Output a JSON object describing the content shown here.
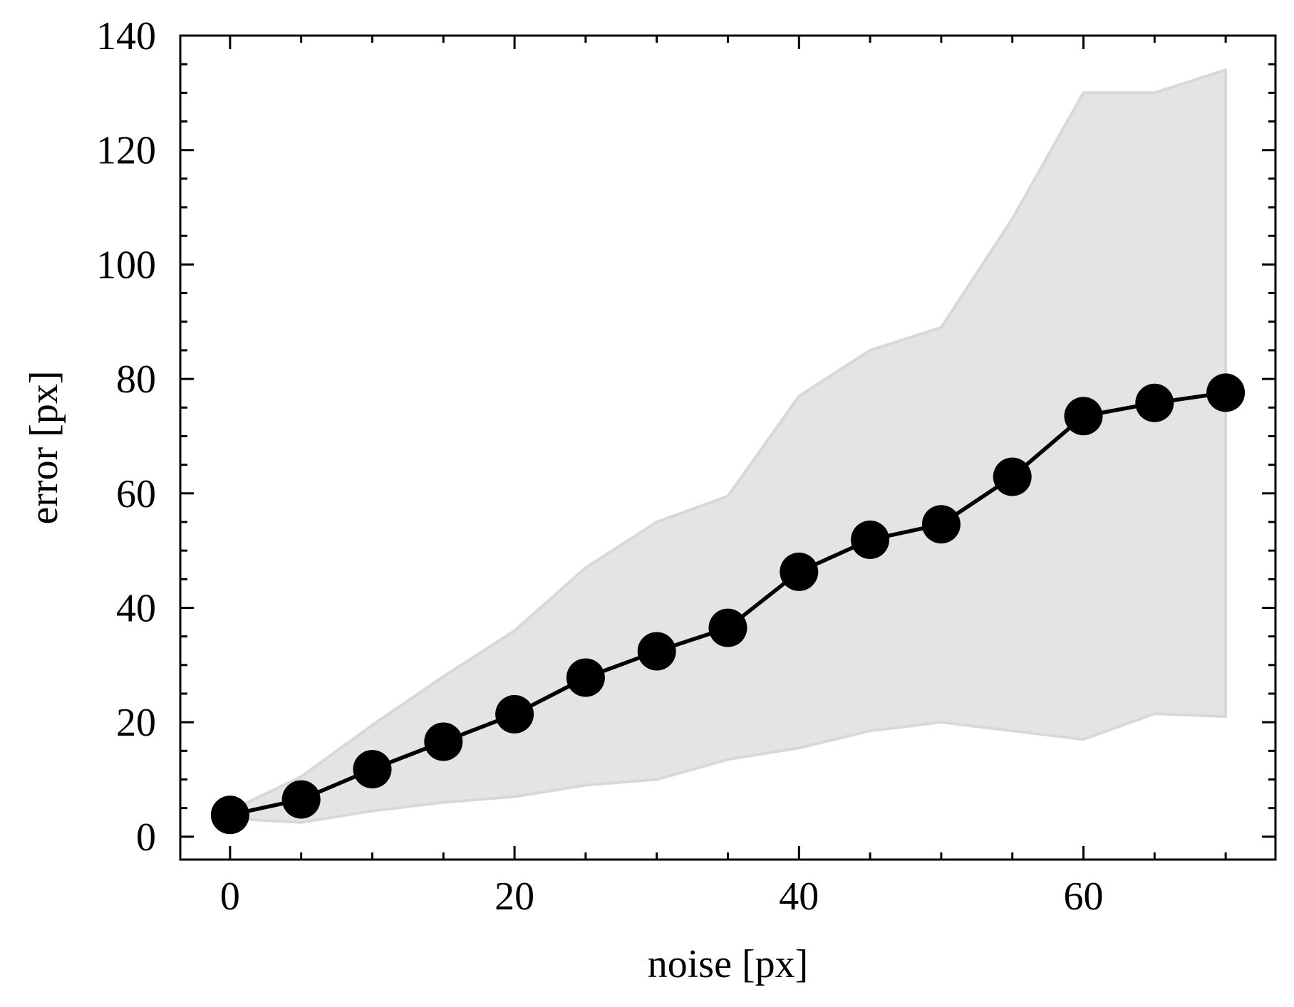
{
  "chart_data": {
    "type": "line",
    "xlabel": "noise [px]",
    "ylabel": "error [px]",
    "xlim": [
      -3.5,
      73.5
    ],
    "ylim": [
      -4,
      140
    ],
    "x_ticks": [
      0,
      20,
      40,
      60
    ],
    "y_ticks": [
      0,
      20,
      40,
      60,
      80,
      100,
      120,
      140
    ],
    "x_minor_step": 5,
    "y_minor_step": 5,
    "grid": false,
    "tick_direction": "in",
    "series": [
      {
        "x": [
          0,
          5,
          10,
          15,
          20,
          25,
          30,
          35,
          40,
          45,
          50,
          55,
          60,
          65,
          70
        ],
        "values": [
          3.8,
          6.5,
          11.8,
          16.6,
          21.4,
          27.8,
          32.4,
          36.5,
          46.3,
          51.9,
          54.6,
          62.9,
          73.5,
          75.8,
          77.6
        ],
        "color": "#000000",
        "marker": "circle"
      }
    ],
    "band": {
      "x": [
        0,
        5,
        10,
        15,
        20,
        25,
        30,
        35,
        40,
        45,
        50,
        55,
        60,
        65,
        70
      ],
      "upper": [
        4.5,
        10.5,
        19.5,
        28,
        36,
        47,
        55,
        59.5,
        77,
        85,
        89,
        108,
        130,
        130,
        134
      ],
      "lower": [
        3.2,
        2.5,
        4.5,
        6,
        7,
        9,
        10,
        13.5,
        15.5,
        18.5,
        20,
        18.5,
        17,
        21.5,
        21
      ],
      "color": "#e4e4e4",
      "edge_color": "#d8d8d8"
    }
  }
}
